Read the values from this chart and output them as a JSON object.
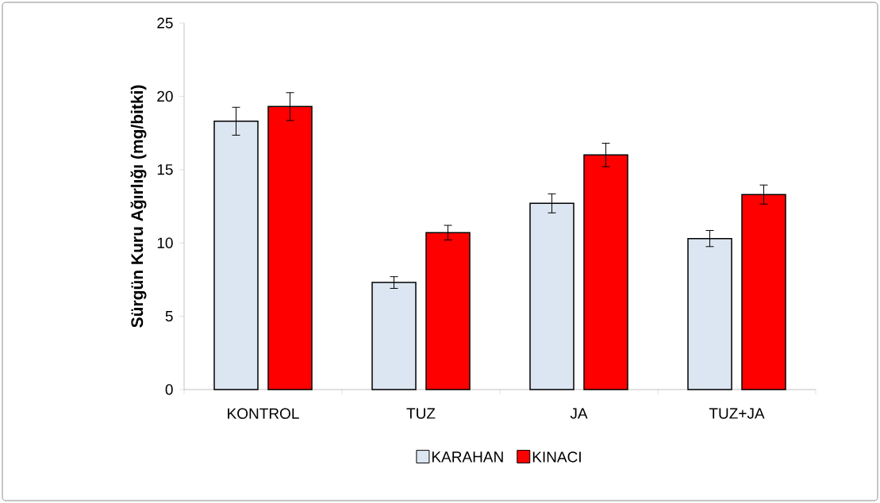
{
  "chart_data": {
    "type": "bar",
    "ylabel": "Sürgün Kuru Ağırlığı (mg/bitki)",
    "categories": [
      "KONTROL",
      "TUZ",
      "JA",
      "TUZ+JA"
    ],
    "series": [
      {
        "name": "KARAHAN",
        "color": "#dce6f2",
        "values": [
          18.3,
          7.3,
          12.7,
          10.3
        ],
        "errors": [
          0.95,
          0.4,
          0.65,
          0.55
        ]
      },
      {
        "name": "KINACI",
        "color": "#ff0000",
        "values": [
          19.3,
          10.7,
          16.0,
          13.3
        ],
        "errors": [
          0.95,
          0.5,
          0.8,
          0.65
        ]
      }
    ],
    "ylim": [
      0,
      25
    ],
    "yticks": [
      0,
      5,
      10,
      15,
      20,
      25
    ],
    "legend": "bottom"
  }
}
